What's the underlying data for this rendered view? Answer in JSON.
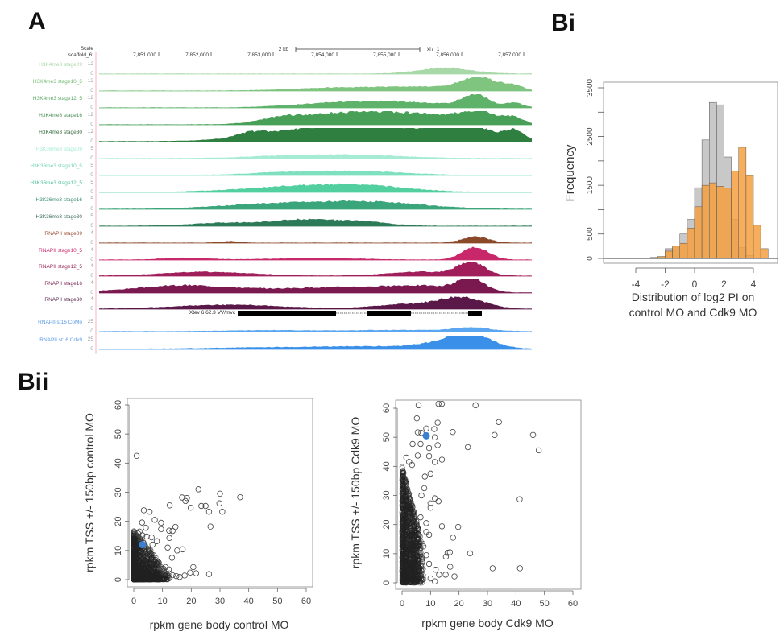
{
  "panels": {
    "A": "A",
    "Bi": "Bi",
    "Bii": "Bii"
  },
  "browser": {
    "scale_label": "Scale",
    "chrom_label": "scaffold_6:",
    "scale_bar_label": "2 kb",
    "assembly_label": "xl7_1",
    "coords": [
      "7,851,000",
      "7,852,000",
      "7,853,000",
      "7,854,000",
      "7,855,000",
      "7,856,000",
      "7,857,000"
    ],
    "gene_label": "Xtev 6.62.3  VV/mvc",
    "tracks": [
      {
        "name": "H3K4me3 stage09",
        "max": "12",
        "min": "0",
        "color": "#a8d8a8",
        "label_color": "#a8d8a8"
      },
      {
        "name": "H3K4me3 stage10_5",
        "max": "12",
        "min": "0",
        "color": "#7fc47f",
        "label_color": "#6fb86f"
      },
      {
        "name": "H3K4me3 stage12_5",
        "max": "12",
        "min": "0",
        "color": "#5fb26a",
        "label_color": "#5aa865"
      },
      {
        "name": "H3K4me3 stage16",
        "max": "12",
        "min": "0",
        "color": "#48a058",
        "label_color": "#4a8f55"
      },
      {
        "name": "H3K4me3 stage30",
        "max": "12",
        "min": "0",
        "color": "#2f7f40",
        "label_color": "#3a6e42"
      },
      {
        "name": "H3K36me3 stage09",
        "max": "5",
        "min": "0",
        "color": "#a6ecd4",
        "label_color": "#a6ecd4"
      },
      {
        "name": "H3K36me3 stage10_5",
        "max": "5",
        "min": "0",
        "color": "#7fe0c0",
        "label_color": "#6fd6b2"
      },
      {
        "name": "H3K36me3 stage12_5",
        "max": "5",
        "min": "0",
        "color": "#52cf9f",
        "label_color": "#4cc297"
      },
      {
        "name": "H3K36me3 stage16",
        "max": "5",
        "min": "0",
        "color": "#3aa57a",
        "label_color": "#3b8e6e"
      },
      {
        "name": "H3K36me3 stage30",
        "max": "5",
        "min": "0",
        "color": "#2c7a58",
        "label_color": "#3c6d58"
      },
      {
        "name": "RNAPII stage09",
        "max": "4",
        "min": "0",
        "color": "#8a4a2a",
        "label_color": "#9a4a30"
      },
      {
        "name": "RNAPII stage10_5",
        "max": "4",
        "min": "0",
        "color": "#c8286a",
        "label_color": "#c8286a"
      },
      {
        "name": "RNAPII stage12_5",
        "max": "4",
        "min": "0",
        "color": "#a01e5a",
        "label_color": "#9a2a5a"
      },
      {
        "name": "RNAPII stage16",
        "max": "4",
        "min": "0",
        "color": "#7a1850",
        "label_color": "#7a2a55"
      },
      {
        "name": "RNAPII stage30",
        "max": "4",
        "min": "0",
        "color": "#5a1848",
        "label_color": "#5a2a50"
      },
      {
        "name": "RNAPII st16 CoMo",
        "max": "25",
        "min": "0",
        "color": "#5aa6f0",
        "label_color": "#5a9ae8"
      },
      {
        "name": "RNAPII st16 Cdk9",
        "max": "25",
        "min": "0",
        "color": "#3a90e8",
        "label_color": "#5a9ae8"
      }
    ]
  },
  "chart_data": [
    {
      "id": "Bi",
      "type": "bar",
      "subtype": "overlaid-histogram",
      "title": "",
      "xlabel": "Distribution of log2 PI on control MO and Cdk9 MO",
      "xlabel_lines": [
        "Distribution of log2 PI on",
        "control MO and Cdk9 MO"
      ],
      "ylabel": "Frequency",
      "xlim": [
        -5.5,
        5.2
      ],
      "ylim": [
        0,
        3500
      ],
      "xticks": [
        -4,
        -2,
        0,
        2,
        4
      ],
      "xtick_labels": [
        "-4",
        "-2",
        "0",
        "2",
        "4"
      ],
      "yticks": [
        0,
        500,
        1500,
        2500,
        3500
      ],
      "ytick_labels": [
        "0",
        "500",
        "1500",
        "2500",
        "3500"
      ],
      "bin_width": 0.5,
      "bin_starts": [
        -5.5,
        -5.0,
        -4.5,
        -4.0,
        -3.5,
        -3.0,
        -2.5,
        -2.0,
        -1.5,
        -1.0,
        -0.5,
        0.0,
        0.5,
        1.0,
        1.5,
        2.0,
        2.5,
        3.0,
        3.5,
        4.0,
        4.5
      ],
      "series": [
        {
          "name": "control MO",
          "color": "#c8c8c8",
          "values": [
            0,
            0,
            0,
            0,
            5,
            15,
            30,
            200,
            250,
            500,
            800,
            1450,
            2430,
            3200,
            3150,
            2080,
            800,
            220,
            60,
            10,
            0
          ]
        },
        {
          "name": "Cdk9 MO",
          "color": "#f5a040",
          "values": [
            0,
            0,
            0,
            0,
            5,
            20,
            40,
            150,
            260,
            310,
            620,
            1060,
            1500,
            1550,
            1480,
            1440,
            1790,
            2280,
            1700,
            680,
            200
          ]
        }
      ]
    },
    {
      "id": "Bii-left",
      "type": "scatter",
      "title": "",
      "xlabel": "rpkm gene body control MO",
      "ylabel": "rpkm TSS +/- 150bp control MO",
      "xlim": [
        0,
        60
      ],
      "ylim": [
        0,
        60
      ],
      "xticks": [
        0,
        10,
        20,
        30,
        40,
        50,
        60
      ],
      "yticks": [
        0,
        10,
        20,
        30,
        40,
        50,
        60
      ],
      "highlight": {
        "x": 3,
        "y": 12,
        "color": "#3a7fd0"
      },
      "points": [
        [
          1,
          42.5
        ],
        [
          22.5,
          31
        ],
        [
          30,
          29.5
        ],
        [
          16.8,
          28.2
        ],
        [
          18.5,
          28
        ],
        [
          37,
          28.3
        ],
        [
          18,
          27
        ],
        [
          12.5,
          25.5
        ],
        [
          23.5,
          25.3
        ],
        [
          25,
          25.3
        ],
        [
          29.8,
          26.2
        ],
        [
          19.8,
          24.7
        ],
        [
          26.2,
          23.3
        ],
        [
          30.8,
          23.3
        ],
        [
          3.5,
          23.8
        ],
        [
          5.5,
          23.3
        ],
        [
          7.3,
          20.5
        ],
        [
          9.5,
          19.5
        ],
        [
          2.9,
          19.6
        ],
        [
          26.7,
          18.2
        ],
        [
          14.5,
          18.1
        ],
        [
          9.5,
          17.3
        ],
        [
          4.2,
          17.8
        ],
        [
          12.3,
          16.8
        ],
        [
          13.5,
          16.7
        ],
        [
          8,
          13.2
        ],
        [
          12.4,
          14.3
        ],
        [
          11.8,
          11
        ],
        [
          15.1,
          10
        ],
        [
          17,
          10.4
        ],
        [
          13.3,
          7.5
        ],
        [
          20.7,
          4.3
        ],
        [
          19.6,
          2.4
        ],
        [
          21.7,
          2.2
        ],
        [
          26.2,
          1.9
        ],
        [
          17.7,
          1.4
        ],
        [
          14.8,
          1.2
        ],
        [
          16,
          0.9
        ],
        [
          13.5,
          1.5
        ],
        [
          12.2,
          3.5
        ],
        [
          10.5,
          2.8
        ],
        [
          9.5,
          4.2
        ],
        [
          8.5,
          4.5
        ],
        [
          11,
          4.3
        ],
        [
          6.2,
          14.5
        ],
        [
          6.5,
          12
        ],
        [
          5.8,
          10
        ],
        [
          2,
          16.5
        ],
        [
          1.5,
          15.8
        ],
        [
          3,
          15.2
        ],
        [
          4.5,
          14.8
        ],
        [
          2.5,
          13.5
        ]
      ],
      "dense_cluster": {
        "x_range": [
          0,
          8
        ],
        "y_range": [
          0,
          15
        ],
        "note": "thousands of overlapping points"
      }
    },
    {
      "id": "Bii-right",
      "type": "scatter",
      "title": "",
      "xlabel": "rpkm gene body Cdk9 MO",
      "ylabel": "rpkm TSS +/- 150bp Cdk9 MO",
      "xlim": [
        0,
        60
      ],
      "ylim": [
        0,
        60
      ],
      "xticks": [
        0,
        10,
        20,
        30,
        40,
        50,
        60
      ],
      "yticks": [
        0,
        10,
        20,
        30,
        40,
        50,
        60
      ],
      "highlight": {
        "x": 8.5,
        "y": 50.5,
        "color": "#3a7fd0"
      },
      "points": [
        [
          5.8,
          61
        ],
        [
          12.8,
          61.5
        ],
        [
          14,
          61.5
        ],
        [
          25.8,
          61
        ],
        [
          5.2,
          56.5
        ],
        [
          12.5,
          55
        ],
        [
          34,
          55.2
        ],
        [
          8.5,
          53
        ],
        [
          11.3,
          52.8
        ],
        [
          5.5,
          51.7
        ],
        [
          6.8,
          51.5
        ],
        [
          17.8,
          51.8
        ],
        [
          32.5,
          50.8
        ],
        [
          46,
          50.8
        ],
        [
          11.5,
          50
        ],
        [
          3.7,
          47.7
        ],
        [
          6.5,
          47.7
        ],
        [
          12.5,
          47.3
        ],
        [
          23.1,
          46.6
        ],
        [
          9.5,
          46.3
        ],
        [
          48,
          45.5
        ],
        [
          1.5,
          43
        ],
        [
          5.5,
          43.7
        ],
        [
          9.5,
          43.5
        ],
        [
          14,
          42.3
        ],
        [
          11.5,
          41.5
        ],
        [
          2.5,
          41.5
        ],
        [
          3.5,
          40.5
        ],
        [
          10,
          37.5
        ],
        [
          8,
          36.5
        ],
        [
          0.5,
          36
        ],
        [
          41.3,
          28.7
        ],
        [
          11.5,
          29
        ],
        [
          12.8,
          28
        ],
        [
          10,
          27.3
        ],
        [
          10,
          25.8
        ],
        [
          14,
          19.4
        ],
        [
          19.7,
          19.2
        ],
        [
          8.5,
          20.5
        ],
        [
          17.9,
          15.5
        ],
        [
          8.5,
          17.5
        ],
        [
          9.5,
          16.5
        ],
        [
          16,
          10.3
        ],
        [
          16.8,
          10.5
        ],
        [
          23.9,
          10.1
        ],
        [
          15.4,
          9
        ],
        [
          16.9,
          5.5
        ],
        [
          31.8,
          5
        ],
        [
          41.4,
          5
        ],
        [
          15.3,
          2.8
        ],
        [
          18.4,
          2.2
        ],
        [
          13,
          2.8
        ],
        [
          11.8,
          4.5
        ],
        [
          10,
          1.5
        ],
        [
          11.5,
          0.5
        ],
        [
          9.5,
          6.5
        ],
        [
          8.5,
          9.5
        ],
        [
          7.5,
          12.5
        ],
        [
          6.5,
          22.5
        ],
        [
          7.8,
          32.5
        ],
        [
          6.8,
          30
        ]
      ],
      "dense_cluster": {
        "x_range": [
          0,
          5
        ],
        "y_range": [
          0,
          40
        ],
        "note": "thousands of overlapping points"
      }
    }
  ]
}
